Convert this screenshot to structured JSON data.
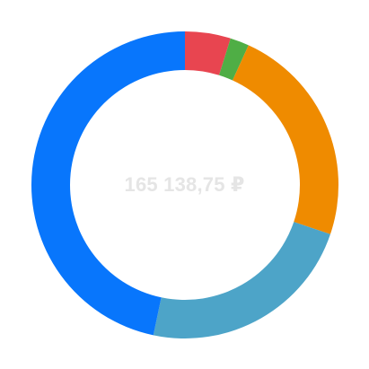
{
  "chart_data": {
    "type": "pie",
    "donut": true,
    "center_text": "165 138,75 ₽",
    "slices": [
      {
        "value": 4.8,
        "color": "#e84550"
      },
      {
        "value": 2.0,
        "color": "#4fae45"
      },
      {
        "value": 23.4,
        "color": "#ef8b00"
      },
      {
        "value": 23.1,
        "color": "#4da4c8"
      },
      {
        "value": 46.7,
        "color": "#0876fc"
      }
    ],
    "start": "top",
    "direction": "clockwise"
  }
}
